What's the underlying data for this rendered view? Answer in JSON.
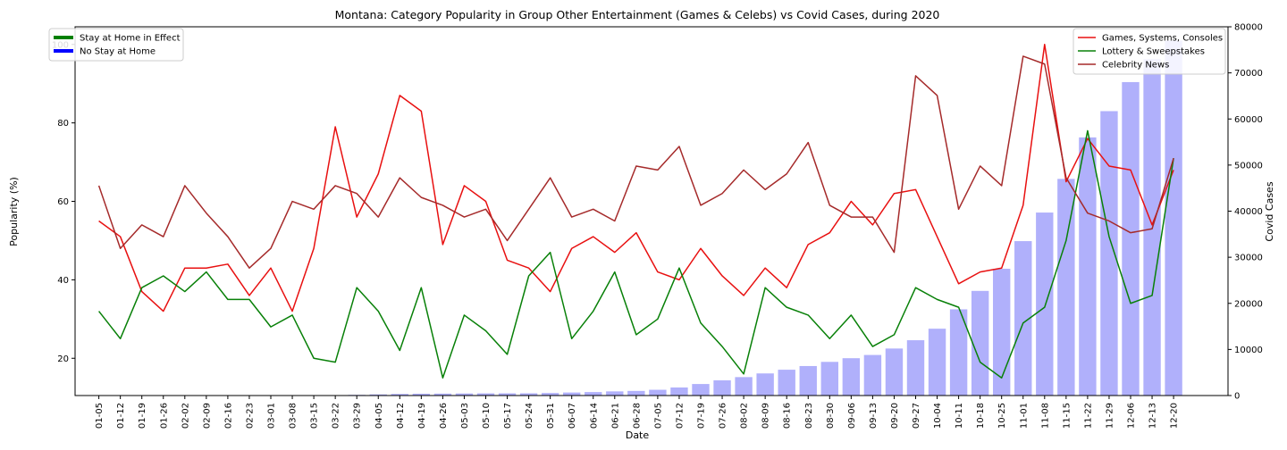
{
  "chart_data": {
    "type": "line+bar",
    "title": "Montana: Category Popularity in Group Other Entertainment (Games & Celebs) vs Covid Cases, during 2020",
    "xlabel": "Date",
    "ylabel": "Popularity (%)",
    "y2label": "Covid Cases",
    "ylim": [
      10.5,
      104.5
    ],
    "y2lim": [
      0,
      80000
    ],
    "yticks": [
      20,
      40,
      60,
      80,
      100
    ],
    "y2ticks": [
      0,
      10000,
      20000,
      30000,
      40000,
      50000,
      60000,
      70000,
      80000
    ],
    "categories": [
      "01-05",
      "01-12",
      "01-19",
      "01-26",
      "02-02",
      "02-09",
      "02-16",
      "02-23",
      "03-01",
      "03-08",
      "03-15",
      "03-22",
      "03-29",
      "04-05",
      "04-12",
      "04-19",
      "04-26",
      "05-03",
      "05-10",
      "05-17",
      "05-24",
      "05-31",
      "06-07",
      "06-14",
      "06-21",
      "06-28",
      "07-05",
      "07-12",
      "07-19",
      "07-26",
      "08-02",
      "08-09",
      "08-16",
      "08-23",
      "08-30",
      "09-06",
      "09-13",
      "09-20",
      "09-27",
      "10-04",
      "10-11",
      "10-18",
      "10-25",
      "11-01",
      "11-08",
      "11-15",
      "11-22",
      "11-29",
      "12-06",
      "12-13",
      "12-20"
    ],
    "series": [
      {
        "name": "Games, Systems, Consoles",
        "color": "#e81010",
        "values": [
          55,
          51,
          37,
          32,
          43,
          43,
          44,
          36,
          43,
          32,
          48,
          79,
          56,
          67,
          87,
          83,
          49,
          64,
          60,
          45,
          43,
          37,
          48,
          51,
          47,
          52,
          42,
          40,
          48,
          41,
          36,
          43,
          38,
          49,
          52,
          60,
          54,
          62,
          63,
          51,
          39,
          42,
          43,
          59,
          100,
          65,
          76,
          69,
          68,
          54,
          68
        ]
      },
      {
        "name": "Lottery & Sweepstakes",
        "color": "#088008",
        "values": [
          32,
          25,
          38,
          41,
          37,
          42,
          35,
          35,
          28,
          31,
          20,
          19,
          38,
          32,
          22,
          38,
          15,
          31,
          27,
          21,
          41,
          47,
          25,
          32,
          42,
          26,
          30,
          43,
          29,
          23,
          16,
          38,
          33,
          31,
          25,
          31,
          23,
          26,
          38,
          35,
          33,
          19,
          15,
          29,
          33,
          50,
          78,
          51,
          34,
          36,
          71
        ]
      },
      {
        "name": "Celebrity News",
        "color": "#a52a2a",
        "values": [
          64,
          48,
          54,
          51,
          64,
          57,
          51,
          43,
          48,
          60,
          58,
          64,
          62,
          56,
          66,
          61,
          59,
          56,
          58,
          50,
          58,
          66,
          56,
          58,
          55,
          69,
          68,
          74,
          59,
          62,
          68,
          63,
          67,
          75,
          59,
          56,
          56,
          47,
          92,
          87,
          58,
          69,
          64,
          97,
          95,
          66,
          57,
          55,
          52,
          53,
          71
        ]
      }
    ],
    "bars": {
      "name": "Covid Cases",
      "color": "#b0b0fb",
      "values": [
        0,
        0,
        0,
        0,
        0,
        0,
        0,
        0,
        0,
        0,
        0,
        0,
        150,
        250,
        350,
        400,
        420,
        450,
        470,
        480,
        490,
        550,
        650,
        750,
        900,
        1000,
        1250,
        1750,
        2500,
        3300,
        4000,
        4800,
        5600,
        6400,
        7300,
        8100,
        8800,
        10200,
        12000,
        14500,
        18700,
        22700,
        27500,
        33500,
        39700,
        47000,
        56000,
        61700,
        68000,
        73000,
        77000
      ]
    },
    "legends": {
      "left": [
        {
          "label": "Stay at Home in Effect",
          "color": "#008000"
        },
        {
          "label": "No Stay at Home",
          "color": "#0000ff"
        }
      ],
      "right": [
        {
          "label": "Games, Systems, Consoles",
          "color": "#e81010"
        },
        {
          "label": "Lottery & Sweepstakes",
          "color": "#088008"
        },
        {
          "label": "Celebrity News",
          "color": "#a52a2a"
        }
      ]
    }
  }
}
